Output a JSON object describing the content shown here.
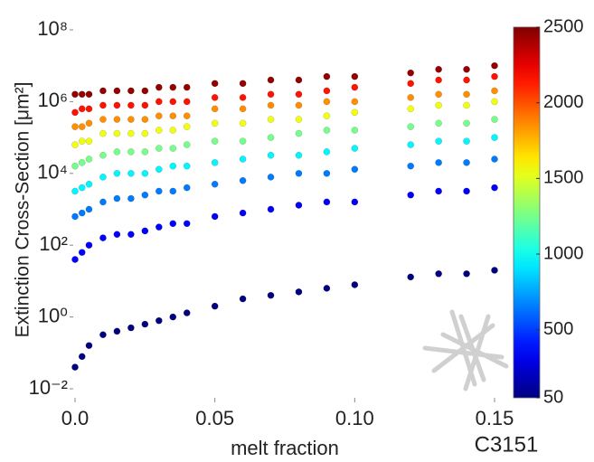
{
  "chart_data": {
    "type": "scatter",
    "xlabel": "melt fraction",
    "ylabel": "Extinction Cross-Section [μm²]",
    "annotation": "C3151",
    "xlim": [
      0,
      0.15
    ],
    "xticks": [
      {
        "value": 0,
        "label": "0.0"
      },
      0.05,
      {
        "value": 0.1,
        "label": "0.10"
      },
      0.15
    ],
    "ylim": [
      0.01,
      100000000
    ],
    "log_y": true,
    "yticks": [
      {
        "value": 0.01,
        "label": "10⁻²"
      },
      {
        "value": 1,
        "label": "10⁰"
      },
      {
        "value": 100,
        "label": "10²"
      },
      {
        "value": 10000,
        "label": "10⁴"
      },
      {
        "value": 1000000,
        "label": "10⁶"
      },
      {
        "value": 100000000,
        "label": "10⁸"
      }
    ],
    "colormap": "jet",
    "clim": [
      50,
      2500
    ],
    "cticks": [
      50,
      500,
      1000,
      1500,
      2000,
      2500
    ],
    "sizes": [
      50,
      350,
      650,
      950,
      1250,
      1550,
      1850,
      2150,
      2450
    ],
    "series": [
      {
        "x": 0,
        "values": [
          0.04,
          40.0,
          630.0,
          3200.0,
          16000.0,
          63000.0,
          200000.0,
          500000.0,
          1600000.0
        ]
      },
      {
        "x": 0.0025,
        "values": [
          0.079,
          63.0,
          790.0,
          4000.0,
          20000.0,
          79000.0,
          200000.0,
          630000.0,
          1600000.0
        ]
      },
      {
        "x": 0.005,
        "values": [
          0.16,
          100.0,
          1000.0,
          5000.0,
          25000.0,
          79000.0,
          250000.0,
          630000.0,
          1600000.0
        ]
      },
      {
        "x": 0.01,
        "values": [
          0.32,
          160.0,
          1600.0,
          7900.0,
          32000.0,
          130000.0,
          320000.0,
          790000.0,
          2000000.0
        ]
      },
      {
        "x": 0.015,
        "values": [
          0.4,
          200.0,
          2000.0,
          10000.0,
          40000.0,
          130000.0,
          320000.0,
          790000.0,
          2000000.0
        ]
      },
      {
        "x": 0.02,
        "values": [
          0.5,
          200.0,
          2000.0,
          10000.0,
          40000.0,
          130000.0,
          320000.0,
          790000.0,
          2000000.0
        ]
      },
      {
        "x": 0.025,
        "values": [
          0.63,
          250.0,
          2500.0,
          10000.0,
          40000.0,
          130000.0,
          320000.0,
          790000.0,
          2000000.0
        ]
      },
      {
        "x": 0.03,
        "values": [
          0.79,
          320.0,
          3200.0,
          13000.0,
          50000.0,
          160000.0,
          400000.0,
          1000000.0,
          2500000.0
        ]
      },
      {
        "x": 0.035,
        "values": [
          1,
          400.0,
          3200.0,
          16000.0,
          50000.0,
          160000.0,
          400000.0,
          1000000.0,
          2500000.0
        ]
      },
      {
        "x": 0.04,
        "values": [
          1.3,
          400.0,
          4000.0,
          16000.0,
          63000.0,
          200000.0,
          400000.0,
          1000000.0,
          2500000.0
        ]
      },
      {
        "x": 0.05,
        "values": [
          2,
          630.0,
          5000.0,
          20000.0,
          79000.0,
          250000.0,
          630000.0,
          1300000.0,
          3200000.0
        ]
      },
      {
        "x": 0.06,
        "values": [
          3.2,
          790.0,
          6300.0,
          25000.0,
          79000.0,
          250000.0,
          630000.0,
          1300000.0,
          3200000.0
        ]
      },
      {
        "x": 0.07,
        "values": [
          4,
          1000.0,
          7900.0,
          32000.0,
          100000.0,
          320000.0,
          790000.0,
          1600000.0,
          4000000.0
        ]
      },
      {
        "x": 0.08,
        "values": [
          5,
          1300.0,
          10000.0,
          32000.0,
          130000.0,
          320000.0,
          790000.0,
          1600000.0,
          4000000.0
        ]
      },
      {
        "x": 0.09,
        "values": [
          6.3,
          1600.0,
          10000.0,
          40000.0,
          160000.0,
          400000.0,
          1000000.0,
          2000000.0,
          5000000.0
        ]
      },
      {
        "x": 0.1,
        "values": [
          7.9,
          1600.0,
          13000.0,
          50000.0,
          160000.0,
          500000.0,
          1000000.0,
          2500000.0,
          5000000.0
        ]
      },
      {
        "x": 0.12,
        "values": [
          13,
          2500.0,
          16000.0,
          63000.0,
          200000.0,
          630000.0,
          1300000.0,
          3200000.0,
          6300000.0
        ]
      },
      {
        "x": 0.13,
        "values": [
          16,
          3200.0,
          20000.0,
          79000.0,
          250000.0,
          790000.0,
          1600000.0,
          4000000.0,
          7900000.0
        ]
      },
      {
        "x": 0.14,
        "values": [
          16,
          3200.0,
          20000.0,
          79000.0,
          250000.0,
          790000.0,
          1600000.0,
          4000000.0,
          7900000.0
        ]
      },
      {
        "x": 0.15,
        "values": [
          20,
          4000.0,
          25000.0,
          100000.0,
          320000.0,
          1000000.0,
          2000000.0,
          5000000.0,
          10000000.0
        ]
      }
    ]
  }
}
